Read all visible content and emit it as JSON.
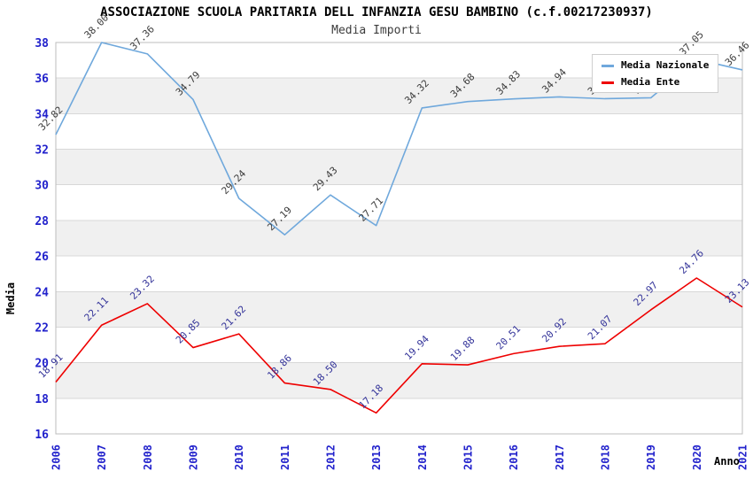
{
  "page": {
    "title": "ASSOCIAZIONE SCUOLA PARITARIA DELL INFANZIA GESU BAMBINO (c.f.00217230937)",
    "subtitle": "Media Importi"
  },
  "axes": {
    "y_label": "Media",
    "x_label": "Anno"
  },
  "legend": {
    "position": "top-right",
    "items": [
      {
        "label": "Media Nazionale",
        "color": "#6fa8dc"
      },
      {
        "label": "Media Ente",
        "color": "#ee0000"
      }
    ]
  },
  "colors": {
    "tick_label": "#2222cc",
    "grid_line": "#d8d8d8",
    "band_fill": "#f0f0f0",
    "plot_border": "#bdbdbd",
    "title": "#000000",
    "subtitle": "#3c3c3c"
  },
  "chart_data": {
    "type": "line",
    "title": "ASSOCIAZIONE SCUOLA PARITARIA DELL INFANZIA GESU BAMBINO (c.f.00217230937)",
    "subtitle": "Media Importi",
    "xlabel": "Anno",
    "ylabel": "Media",
    "x": [
      "2006",
      "2007",
      "2008",
      "2009",
      "2010",
      "2011",
      "2012",
      "2013",
      "2014",
      "2015",
      "2016",
      "2017",
      "2018",
      "2019",
      "2020",
      "2021"
    ],
    "ylim": [
      16,
      38
    ],
    "ytick_step": 2,
    "grid": "horizontal",
    "band_rows": [
      18,
      22,
      26,
      30,
      34
    ],
    "legend_position": "top-right",
    "series": [
      {
        "name": "Media Nazionale",
        "color": "#6fa8dc",
        "label_color": "#3c3c3c",
        "values": [
          32.82,
          38.0,
          37.36,
          34.79,
          29.24,
          27.19,
          29.43,
          27.71,
          34.32,
          34.68,
          34.83,
          34.94,
          34.84,
          34.89,
          37.05,
          36.46
        ]
      },
      {
        "name": "Media Ente",
        "color": "#ee0000",
        "label_color": "#333399",
        "values": [
          18.91,
          22.11,
          23.32,
          20.85,
          21.62,
          18.86,
          18.5,
          17.18,
          19.94,
          19.88,
          20.51,
          20.92,
          21.07,
          22.97,
          24.76,
          23.13
        ]
      }
    ]
  }
}
